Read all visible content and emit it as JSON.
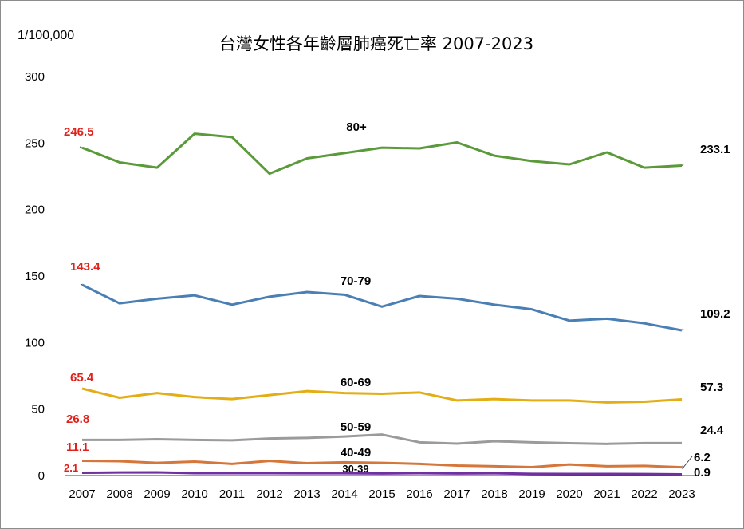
{
  "chart_data": {
    "type": "line",
    "title": "台灣女性各年齡層肺癌死亡率 2007-2023",
    "ylabel": "1/100,000",
    "ylim": [
      0,
      300
    ],
    "yticks": [
      "0",
      "50",
      "100",
      "150",
      "200",
      "250",
      "300"
    ],
    "categories": [
      "2007",
      "2008",
      "2009",
      "2010",
      "2011",
      "2012",
      "2013",
      "2014",
      "2015",
      "2016",
      "2017",
      "2018",
      "2019",
      "2020",
      "2021",
      "2022",
      "2023"
    ],
    "grid": false,
    "series": [
      {
        "name": "80+",
        "color": "#5a9a3a",
        "values": [
          246.5,
          235.5,
          231.5,
          257,
          254.5,
          227,
          238.5,
          242.5,
          246.5,
          246,
          250.5,
          240.5,
          236.5,
          234,
          243,
          231.5,
          233.1
        ],
        "start_label": "246.5",
        "end_label": "233.1"
      },
      {
        "name": "70-79",
        "color": "#4a7fb5",
        "values": [
          143.4,
          129.5,
          133,
          135.5,
          128.5,
          134.5,
          138,
          136,
          127,
          135,
          133,
          128.5,
          125,
          116.5,
          118,
          114.5,
          109.2
        ],
        "start_label": "143.4",
        "end_label": "109.2"
      },
      {
        "name": "60-69",
        "color": "#e3ad13",
        "values": [
          65.4,
          58.5,
          62,
          59,
          57.5,
          60.5,
          63.5,
          62,
          61.5,
          62.5,
          56.5,
          57.5,
          56.5,
          56.5,
          55,
          55.5,
          57.3
        ],
        "start_label": "65.4",
        "end_label": "57.3"
      },
      {
        "name": "50-59",
        "color": "#9b9b9b",
        "values": [
          26.8,
          26.8,
          27.3,
          26.8,
          26.5,
          27.8,
          28.3,
          29.3,
          30.8,
          25,
          24,
          25.8,
          25,
          24.3,
          23.8,
          24.4,
          24.4
        ],
        "start_label": "26.8",
        "end_label": "24.4"
      },
      {
        "name": "40-49",
        "color": "#d5773a",
        "values": [
          11.1,
          10.8,
          9.5,
          10.5,
          8.8,
          11,
          9.3,
          10,
          9.5,
          8.8,
          7.5,
          7,
          6.3,
          8.3,
          7,
          7.3,
          6.2
        ],
        "start_label": "11.1",
        "end_label": "6.2"
      },
      {
        "name": "30-39",
        "color": "#7030a0",
        "values": [
          2.1,
          2.3,
          2.4,
          1.8,
          1.8,
          1.8,
          1.7,
          1.7,
          1.6,
          1.8,
          1.6,
          1.7,
          1.3,
          1.2,
          1.2,
          1.1,
          0.9
        ],
        "start_label": "2.1",
        "end_label": "0.9"
      }
    ]
  }
}
